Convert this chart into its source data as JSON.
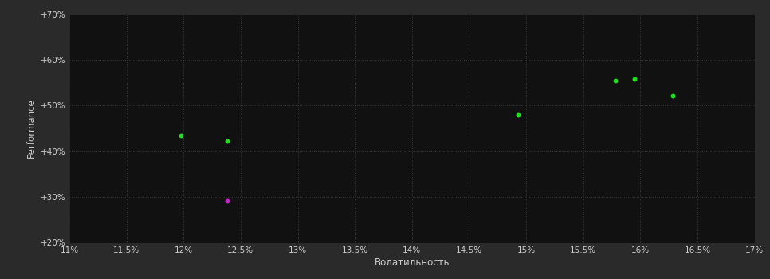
{
  "background_color": "#2a2a2a",
  "plot_bg_color": "#111111",
  "grid_color": "#3a3a3a",
  "text_color": "#cccccc",
  "xlabel": "Волатильность",
  "ylabel": "Performance",
  "xlim": [
    0.11,
    0.17
  ],
  "ylim": [
    0.2,
    0.7
  ],
  "xticks": [
    0.11,
    0.115,
    0.12,
    0.125,
    0.13,
    0.135,
    0.14,
    0.145,
    0.15,
    0.155,
    0.16,
    0.165,
    0.17
  ],
  "yticks": [
    0.2,
    0.3,
    0.4,
    0.5,
    0.6,
    0.7
  ],
  "ytick_labels": [
    "+20%",
    "+30%",
    "+40%",
    "+50%",
    "+60%",
    "+70%"
  ],
  "xtick_labels": [
    "11%",
    "11.5%",
    "12%",
    "12.5%",
    "13%",
    "13.5%",
    "14%",
    "14.5%",
    "15%",
    "15.5%",
    "16%",
    "16.5%",
    "17%"
  ],
  "green_points": [
    [
      0.1198,
      0.435
    ],
    [
      0.1238,
      0.422
    ],
    [
      0.1493,
      0.48
    ],
    [
      0.1578,
      0.554
    ],
    [
      0.1595,
      0.558
    ],
    [
      0.1628,
      0.522
    ]
  ],
  "magenta_points": [
    [
      0.1238,
      0.292
    ]
  ],
  "green_color": "#22dd22",
  "magenta_color": "#cc22cc",
  "point_size": 18
}
